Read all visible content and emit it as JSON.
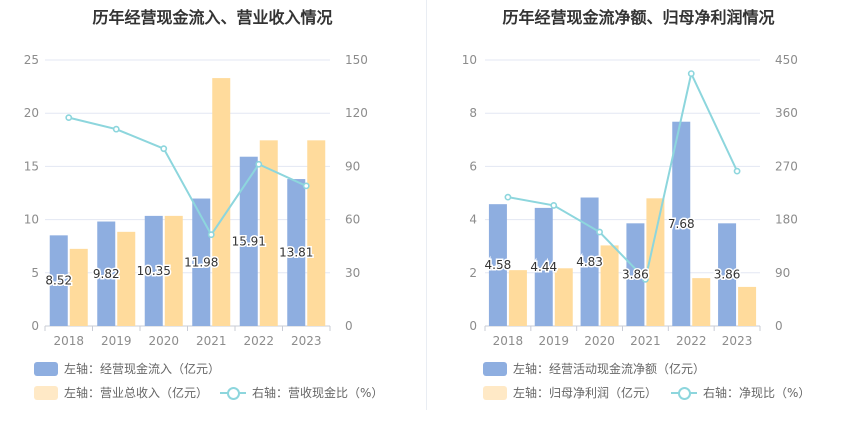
{
  "charts": [
    {
      "title": "历年经营现金流入、营业收入情况",
      "legend": [
        {
          "label": "左轴：经营现金流入（亿元）",
          "color": "#8eaee0",
          "kind": "bar"
        },
        {
          "label": "左轴：营业总收入（亿元）",
          "color": "#ffe2b0",
          "kind": "bar"
        },
        {
          "label": "右轴：营收现金比（%）",
          "color": "#8dd6dd",
          "kind": "line"
        }
      ]
    },
    {
      "title": "历年经营现金流净额、归母净利润情况",
      "legend": [
        {
          "label": "左轴：经营活动现金流净额（亿元）",
          "color": "#8eaee0",
          "kind": "bar"
        },
        {
          "label": "左轴：归母净利润（亿元）",
          "color": "#ffe2b0",
          "kind": "bar"
        },
        {
          "label": "右轴：净现比（%）",
          "color": "#8dd6dd",
          "kind": "line"
        }
      ]
    }
  ],
  "chart_data": [
    {
      "type": "bar",
      "title": "历年经营现金流入、营业收入情况",
      "categories": [
        "2018",
        "2019",
        "2020",
        "2021",
        "2022",
        "2023"
      ],
      "y_left": {
        "min": 0,
        "max": 25,
        "ticks": [
          0,
          5,
          10,
          15,
          20,
          25
        ]
      },
      "y_right": {
        "min": 0,
        "max": 150,
        "ticks": [
          0,
          30,
          60,
          90,
          120,
          150
        ]
      },
      "series": [
        {
          "name": "左轴：经营现金流入（亿元）",
          "axis": "left",
          "type": "bar",
          "color": "#8eaee0",
          "values": [
            8.52,
            9.82,
            10.35,
            11.98,
            15.91,
            13.81
          ],
          "labels_shown": true
        },
        {
          "name": "左轴：营业总收入（亿元）",
          "axis": "left",
          "type": "bar",
          "color": "#ffdb9c",
          "values": [
            7.25,
            8.85,
            10.35,
            23.3,
            17.45,
            17.45
          ],
          "labels_shown": false
        },
        {
          "name": "右轴：营收现金比（%）",
          "axis": "right",
          "type": "line",
          "color": "#8dd6dd",
          "values": [
            117.5,
            111,
            100,
            51.5,
            91.2,
            79
          ]
        }
      ],
      "grid": true,
      "legend_position": "bottom"
    },
    {
      "type": "bar",
      "title": "历年经营现金流净额、归母净利润情况",
      "categories": [
        "2018",
        "2019",
        "2020",
        "2021",
        "2022",
        "2023"
      ],
      "y_left": {
        "min": 0,
        "max": 10,
        "ticks": [
          0,
          2,
          4,
          6,
          8,
          10
        ]
      },
      "y_right": {
        "min": 0,
        "max": 450,
        "ticks": [
          0,
          90,
          180,
          270,
          360,
          450
        ]
      },
      "series": [
        {
          "name": "左轴：经营活动现金流净额（亿元）",
          "axis": "left",
          "type": "bar",
          "color": "#8eaee0",
          "values": [
            4.58,
            4.44,
            4.83,
            3.86,
            7.68,
            3.86
          ],
          "labels_shown": true
        },
        {
          "name": "左轴：归母净利润（亿元）",
          "axis": "left",
          "type": "bar",
          "color": "#ffdb9c",
          "values": [
            2.1,
            2.17,
            3.03,
            4.8,
            1.8,
            1.47
          ],
          "labels_shown": false
        },
        {
          "name": "右轴：净现比（%）",
          "axis": "right",
          "type": "line",
          "color": "#8dd6dd",
          "values": [
            218,
            204,
            159,
            79,
            427,
            262
          ]
        }
      ],
      "grid": true,
      "legend_position": "bottom"
    }
  ]
}
